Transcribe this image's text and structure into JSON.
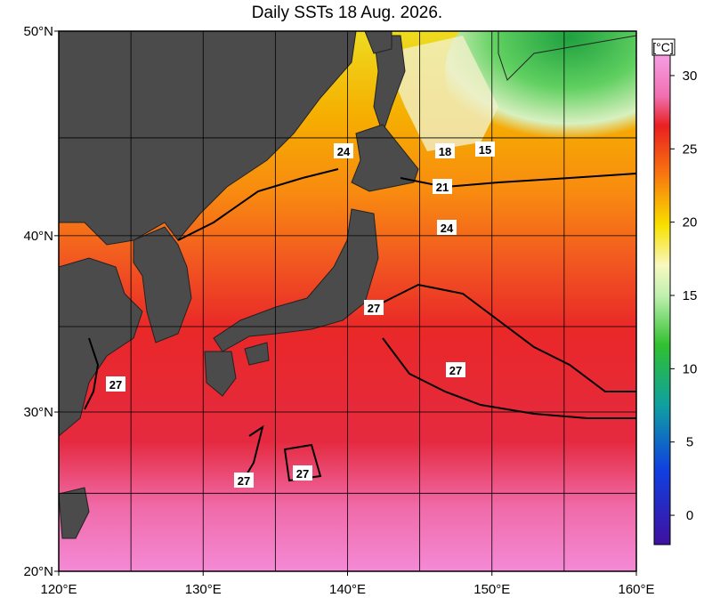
{
  "title": "Daily SSTs 18 Aug. 2026.",
  "lonlim": [
    120,
    160
  ],
  "latlim": [
    20,
    50
  ],
  "lonticks": [
    {
      "value": 120,
      "label": "120°E"
    },
    {
      "value": 130,
      "label": "130°E"
    },
    {
      "value": 140,
      "label": "140°E"
    },
    {
      "value": 150,
      "label": "150°E"
    },
    {
      "value": 160,
      "label": "160°E"
    }
  ],
  "latticks": [
    {
      "value": 20,
      "label": "20°N"
    },
    {
      "value": 30,
      "label": "30°N"
    },
    {
      "value": 40,
      "label": "40°N"
    },
    {
      "value": 50,
      "label": "50°N"
    }
  ],
  "gridlons": [
    125,
    130,
    135,
    140,
    145,
    150,
    155
  ],
  "gridlats": [
    25,
    30,
    35,
    40,
    45
  ],
  "colorbar": {
    "label": "[°C]",
    "range": [
      -2,
      32
    ],
    "ticks": [
      0,
      5,
      10,
      15,
      20,
      25,
      30
    ]
  },
  "contour_labels": [
    "24",
    "18",
    "15",
    "21",
    "24",
    "27",
    "27",
    "27",
    "27",
    "27"
  ]
}
